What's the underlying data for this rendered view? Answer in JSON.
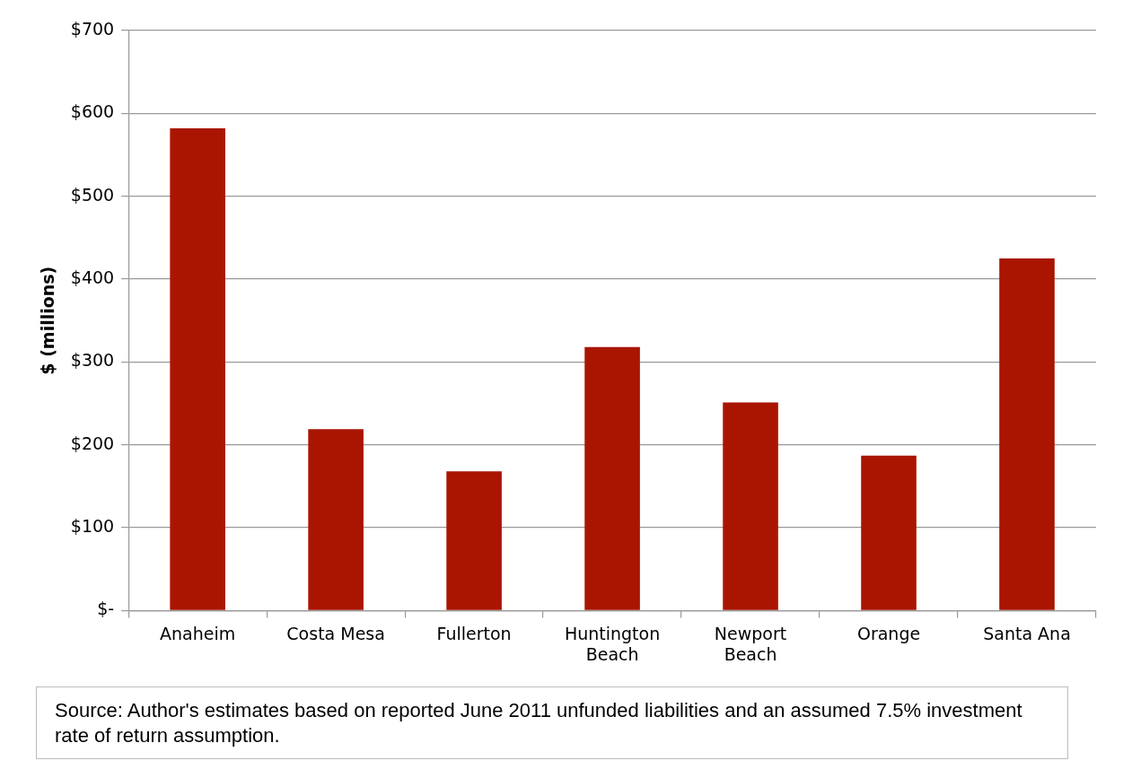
{
  "chart_data": {
    "type": "bar",
    "ylabel": "$ (millions)",
    "categories": [
      "Anaheim",
      "Costa Mesa",
      "Fullerton",
      "Huntington Beach",
      "Newport Beach",
      "Orange",
      "Santa Ana"
    ],
    "values": [
      582,
      219,
      168,
      318,
      251,
      187,
      425
    ],
    "color": "#a91500",
    "ylim": [
      0,
      700
    ],
    "yticks": [
      {
        "value": 0,
        "label": "$-"
      },
      {
        "value": 100,
        "label": "$100"
      },
      {
        "value": 200,
        "label": "$200"
      },
      {
        "value": 300,
        "label": "$300"
      },
      {
        "value": 400,
        "label": "$400"
      },
      {
        "value": 500,
        "label": "$500"
      },
      {
        "value": 600,
        "label": "$600"
      },
      {
        "value": 700,
        "label": "$700"
      }
    ],
    "grid": "y",
    "legend": false,
    "annotations": [
      "Source: Author's estimates based on reported June 2011 unfunded liabilities and an assumed 7.5% investment rate of return assumption."
    ]
  }
}
